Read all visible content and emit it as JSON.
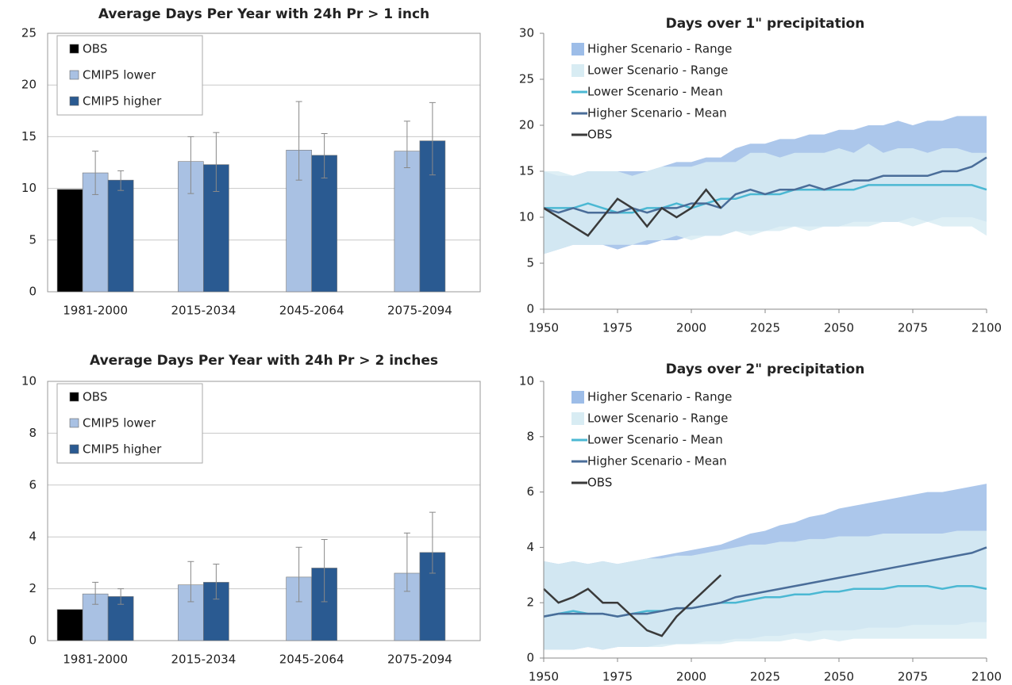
{
  "chart_data": [
    {
      "type": "bar",
      "title": "Average Days Per Year with 24h Pr > 1 inch",
      "categories": [
        "1981-2000",
        "2015-2034",
        "2045-2064",
        "2075-2094"
      ],
      "series": [
        {
          "name": "OBS",
          "color": "#000000",
          "values": [
            9.9,
            null,
            null,
            null
          ]
        },
        {
          "name": "CMIP5 lower",
          "color": "#a9c1e3",
          "values": [
            11.5,
            12.6,
            13.7,
            13.6
          ],
          "lower": [
            9.4,
            9.5,
            10.8,
            12.0
          ],
          "upper": [
            13.6,
            15.0,
            18.4,
            16.5
          ]
        },
        {
          "name": "CMIP5 higher",
          "color": "#2a5a91",
          "values": [
            10.8,
            12.3,
            13.2,
            14.6
          ],
          "lower": [
            9.8,
            9.7,
            11.0,
            11.3
          ],
          "upper": [
            11.7,
            15.4,
            15.3,
            18.3
          ]
        }
      ],
      "ylim": [
        0,
        25
      ],
      "yticks": [
        0,
        5,
        10,
        15,
        20,
        25
      ],
      "grid": true
    },
    {
      "type": "line",
      "title": "Days over 1\" precipitation",
      "x": [
        1950,
        1955,
        1960,
        1965,
        1970,
        1975,
        1980,
        1985,
        1990,
        1995,
        2000,
        2005,
        2010,
        2015,
        2020,
        2025,
        2030,
        2035,
        2040,
        2045,
        2050,
        2055,
        2060,
        2065,
        2070,
        2075,
        2080,
        2085,
        2090,
        2095,
        2100
      ],
      "series": [
        {
          "name": "Higher Scenario - Range",
          "color": "#9dbde8",
          "low": [
            6,
            6.5,
            7,
            7,
            7,
            6.5,
            7,
            7,
            7.5,
            7.5,
            8,
            8,
            8,
            8.5,
            8.5,
            8.5,
            9,
            9,
            9,
            9,
            9,
            9.5,
            9.5,
            9.5,
            9.5,
            10,
            9.5,
            10,
            10,
            10,
            9.5
          ],
          "high": [
            15,
            14.5,
            14.5,
            15,
            15,
            15,
            15,
            15,
            15.5,
            16,
            16,
            16.5,
            16.5,
            17.5,
            18,
            18,
            18.5,
            18.5,
            19,
            19,
            19.5,
            19.5,
            20,
            20,
            20.5,
            20,
            20.5,
            20.5,
            21,
            21,
            21
          ]
        },
        {
          "name": "Lower Scenario - Range",
          "color": "#d8ecf3",
          "low": [
            6,
            6.5,
            7,
            7,
            7,
            7,
            7,
            7.5,
            7.5,
            8,
            7.5,
            8,
            8,
            8.5,
            8,
            8.5,
            8.5,
            9,
            8.5,
            9,
            9,
            9,
            9,
            9.5,
            9.5,
            9,
            9.5,
            9,
            9,
            9,
            8
          ],
          "high": [
            15,
            15,
            14.5,
            15,
            15,
            15,
            14.5,
            15,
            15.5,
            15.5,
            15.5,
            16,
            16,
            16,
            17,
            17,
            16.5,
            17,
            17,
            17,
            17.5,
            17,
            18,
            17,
            17.5,
            17.5,
            17,
            17.5,
            17.5,
            17,
            17
          ]
        },
        {
          "name": "Lower Scenario - Mean",
          "color": "#4bb8d3",
          "values": [
            11,
            11,
            11,
            11.5,
            11,
            10.5,
            10.5,
            11,
            11,
            11.5,
            11,
            11.5,
            12,
            12,
            12.5,
            12.5,
            12.5,
            13,
            13,
            13,
            13,
            13,
            13.5,
            13.5,
            13.5,
            13.5,
            13.5,
            13.5,
            13.5,
            13.5,
            13
          ]
        },
        {
          "name": "Higher Scenario - Mean",
          "color": "#4a6d99",
          "values": [
            11,
            10.5,
            11,
            10.5,
            10.5,
            10.5,
            11,
            10.5,
            11,
            11,
            11.5,
            11.5,
            11,
            12.5,
            13,
            12.5,
            13,
            13,
            13.5,
            13,
            13.5,
            14,
            14,
            14.5,
            14.5,
            14.5,
            14.5,
            15,
            15,
            15.5,
            16.5
          ]
        },
        {
          "name": "OBS",
          "color": "#3a3a3a",
          "values": [
            11,
            10,
            9,
            8,
            10,
            12,
            11,
            9,
            11,
            10,
            11,
            13,
            11,
            null,
            null,
            null,
            null,
            null,
            null,
            null,
            null,
            null,
            null,
            null,
            null,
            null,
            null,
            null,
            null,
            null,
            null
          ]
        }
      ],
      "xlim": [
        1950,
        2100
      ],
      "xticks": [
        1950,
        1975,
        2000,
        2025,
        2050,
        2075,
        2100
      ],
      "ylim": [
        0,
        30
      ],
      "yticks": [
        0,
        5,
        10,
        15,
        20,
        25,
        30
      ],
      "grid": false
    },
    {
      "type": "bar",
      "title": "Average Days Per Year with 24h Pr > 2 inches",
      "categories": [
        "1981-2000",
        "2015-2034",
        "2045-2064",
        "2075-2094"
      ],
      "series": [
        {
          "name": "OBS",
          "color": "#000000",
          "values": [
            1.2,
            null,
            null,
            null
          ]
        },
        {
          "name": "CMIP5 lower",
          "color": "#a9c1e3",
          "values": [
            1.8,
            2.15,
            2.45,
            2.6
          ],
          "lower": [
            1.4,
            1.5,
            1.5,
            1.9
          ],
          "upper": [
            2.25,
            3.05,
            3.6,
            4.15
          ]
        },
        {
          "name": "CMIP5 higher",
          "color": "#2a5a91",
          "values": [
            1.7,
            2.25,
            2.8,
            3.4
          ],
          "lower": [
            1.4,
            1.6,
            1.5,
            2.6
          ],
          "upper": [
            2.0,
            2.95,
            3.9,
            4.95
          ]
        }
      ],
      "ylim": [
        0,
        10
      ],
      "yticks": [
        0,
        2,
        4,
        6,
        8,
        10
      ],
      "grid": true
    },
    {
      "type": "line",
      "title": "Days over 2\" precipitation",
      "x": [
        1950,
        1955,
        1960,
        1965,
        1970,
        1975,
        1980,
        1985,
        1990,
        1995,
        2000,
        2005,
        2010,
        2015,
        2020,
        2025,
        2030,
        2035,
        2040,
        2045,
        2050,
        2055,
        2060,
        2065,
        2070,
        2075,
        2080,
        2085,
        2090,
        2095,
        2100
      ],
      "series": [
        {
          "name": "Higher Scenario - Range",
          "color": "#9dbde8",
          "low": [
            0.3,
            0.3,
            0.3,
            0.4,
            0.3,
            0.4,
            0.4,
            0.4,
            0.5,
            0.5,
            0.5,
            0.6,
            0.6,
            0.7,
            0.7,
            0.8,
            0.8,
            0.9,
            0.9,
            1.0,
            1.0,
            1.0,
            1.1,
            1.1,
            1.1,
            1.2,
            1.2,
            1.2,
            1.2,
            1.3,
            1.3
          ],
          "high": [
            3.5,
            3.4,
            3.5,
            3.4,
            3.5,
            3.4,
            3.5,
            3.6,
            3.7,
            3.8,
            3.9,
            4.0,
            4.1,
            4.3,
            4.5,
            4.6,
            4.8,
            4.9,
            5.1,
            5.2,
            5.4,
            5.5,
            5.6,
            5.7,
            5.8,
            5.9,
            6.0,
            6.0,
            6.1,
            6.2,
            6.3
          ]
        },
        {
          "name": "Lower Scenario - Range",
          "color": "#d8ecf3",
          "low": [
            0.3,
            0.3,
            0.3,
            0.4,
            0.3,
            0.4,
            0.4,
            0.4,
            0.4,
            0.5,
            0.5,
            0.5,
            0.5,
            0.6,
            0.6,
            0.6,
            0.6,
            0.7,
            0.6,
            0.7,
            0.6,
            0.7,
            0.7,
            0.7,
            0.7,
            0.7,
            0.7,
            0.7,
            0.7,
            0.7,
            0.7
          ],
          "high": [
            3.5,
            3.4,
            3.5,
            3.4,
            3.5,
            3.4,
            3.5,
            3.6,
            3.6,
            3.7,
            3.7,
            3.8,
            3.9,
            4.0,
            4.1,
            4.1,
            4.2,
            4.2,
            4.3,
            4.3,
            4.4,
            4.4,
            4.4,
            4.5,
            4.5,
            4.5,
            4.5,
            4.5,
            4.6,
            4.6,
            4.6
          ]
        },
        {
          "name": "Lower Scenario - Mean",
          "color": "#4bb8d3",
          "values": [
            1.5,
            1.6,
            1.7,
            1.6,
            1.6,
            1.5,
            1.6,
            1.7,
            1.7,
            1.8,
            1.8,
            1.9,
            2.0,
            2.0,
            2.1,
            2.2,
            2.2,
            2.3,
            2.3,
            2.4,
            2.4,
            2.5,
            2.5,
            2.5,
            2.6,
            2.6,
            2.6,
            2.5,
            2.6,
            2.6,
            2.5
          ]
        },
        {
          "name": "Higher Scenario - Mean",
          "color": "#4a6d99",
          "values": [
            1.5,
            1.6,
            1.6,
            1.6,
            1.6,
            1.5,
            1.6,
            1.6,
            1.7,
            1.8,
            1.8,
            1.9,
            2.0,
            2.2,
            2.3,
            2.4,
            2.5,
            2.6,
            2.7,
            2.8,
            2.9,
            3.0,
            3.1,
            3.2,
            3.3,
            3.4,
            3.5,
            3.6,
            3.7,
            3.8,
            4.0
          ]
        },
        {
          "name": "OBS",
          "color": "#3a3a3a",
          "values": [
            2.5,
            2.0,
            2.2,
            2.5,
            2.0,
            2.0,
            1.5,
            1.0,
            0.8,
            1.5,
            2.0,
            2.5,
            3.0,
            null,
            null,
            null,
            null,
            null,
            null,
            null,
            null,
            null,
            null,
            null,
            null,
            null,
            null,
            null,
            null,
            null,
            null
          ]
        }
      ],
      "xlim": [
        1950,
        2100
      ],
      "xticks": [
        1950,
        1975,
        2000,
        2025,
        2050,
        2075,
        2100
      ],
      "ylim": [
        0,
        10
      ],
      "yticks": [
        0,
        2,
        4,
        6,
        8,
        10
      ],
      "grid": false
    }
  ]
}
